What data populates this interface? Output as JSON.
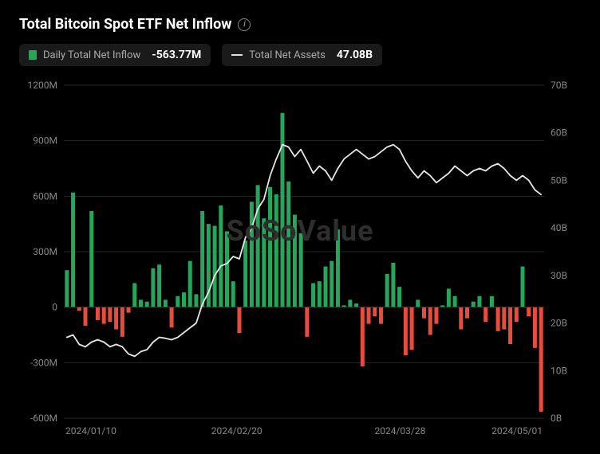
{
  "title": "Total Bitcoin Spot ETF Net Inflow",
  "legend": {
    "inflow_label": "Daily Total Net Inflow",
    "inflow_value": "-563.77M",
    "inflow_swatch_color": "#26a65b",
    "assets_label": "Total Net Assets",
    "assets_value": "47.08B"
  },
  "watermark": "SoSoValue",
  "chart": {
    "type": "bar+line",
    "background_color": "#000000",
    "grid_color": "#262626",
    "axis_color": "#888888",
    "positive_bar_color": "#26a65b",
    "negative_bar_color": "#e74c3c",
    "line_color": "#e6e6e6",
    "line_width": 1.8,
    "bar_width_ratio": 0.65,
    "y_left": {
      "min": -600,
      "max": 1200,
      "step": 300,
      "unit": "M",
      "ticks": [
        -600,
        -300,
        0,
        300,
        600,
        900,
        1200
      ]
    },
    "y_right": {
      "min": 0,
      "max": 70,
      "step": 10,
      "unit": "B",
      "ticks": [
        0,
        10,
        20,
        30,
        40,
        50,
        60,
        70
      ]
    },
    "x_ticks": [
      "2024/01/10",
      "2024/02/20",
      "2024/03/28",
      "2024/05/01"
    ],
    "bars": [
      200,
      620,
      -20,
      -100,
      520,
      -70,
      -90,
      -80,
      -120,
      -160,
      -30,
      130,
      40,
      30,
      210,
      230,
      40,
      -110,
      60,
      80,
      250,
      70,
      520,
      450,
      440,
      550,
      410,
      140,
      -140,
      360,
      570,
      660,
      480,
      650,
      610,
      1050,
      680,
      500,
      400,
      -160,
      130,
      140,
      220,
      250,
      420,
      10,
      40,
      20,
      -320,
      -90,
      -50,
      -90,
      180,
      240,
      110,
      -260,
      -230,
      40,
      -60,
      -150,
      -90,
      10,
      100,
      60,
      -120,
      -60,
      30,
      60,
      -80,
      60,
      -130,
      -120,
      -200,
      -80,
      220,
      -50,
      -220,
      -565
    ],
    "line": [
      17.0,
      17.5,
      15.5,
      15.0,
      16.0,
      16.5,
      16.0,
      15.0,
      15.5,
      15.0,
      13.5,
      13.0,
      14.0,
      14.4,
      16.0,
      17.0,
      16.8,
      16.5,
      17.0,
      18.0,
      19.0,
      20.0,
      24.0,
      26.5,
      30.0,
      32.0,
      32.5,
      34.0,
      33.5,
      38.0,
      40.0,
      44.0,
      46.0,
      51.0,
      54.5,
      57.5,
      57.0,
      55.0,
      56.5,
      54.0,
      51.5,
      53.0,
      52.0,
      50.0,
      52.5,
      54.5,
      55.5,
      56.5,
      55.5,
      54.5,
      55.0,
      56.0,
      57.0,
      57.5,
      56.5,
      54.0,
      52.0,
      50.5,
      52.0,
      51.0,
      49.5,
      50.5,
      51.5,
      53.0,
      52.0,
      51.0,
      52.0,
      52.5,
      52.0,
      53.0,
      53.5,
      52.5,
      51.0,
      50.0,
      51.0,
      50.0,
      48.0,
      47.0
    ]
  }
}
